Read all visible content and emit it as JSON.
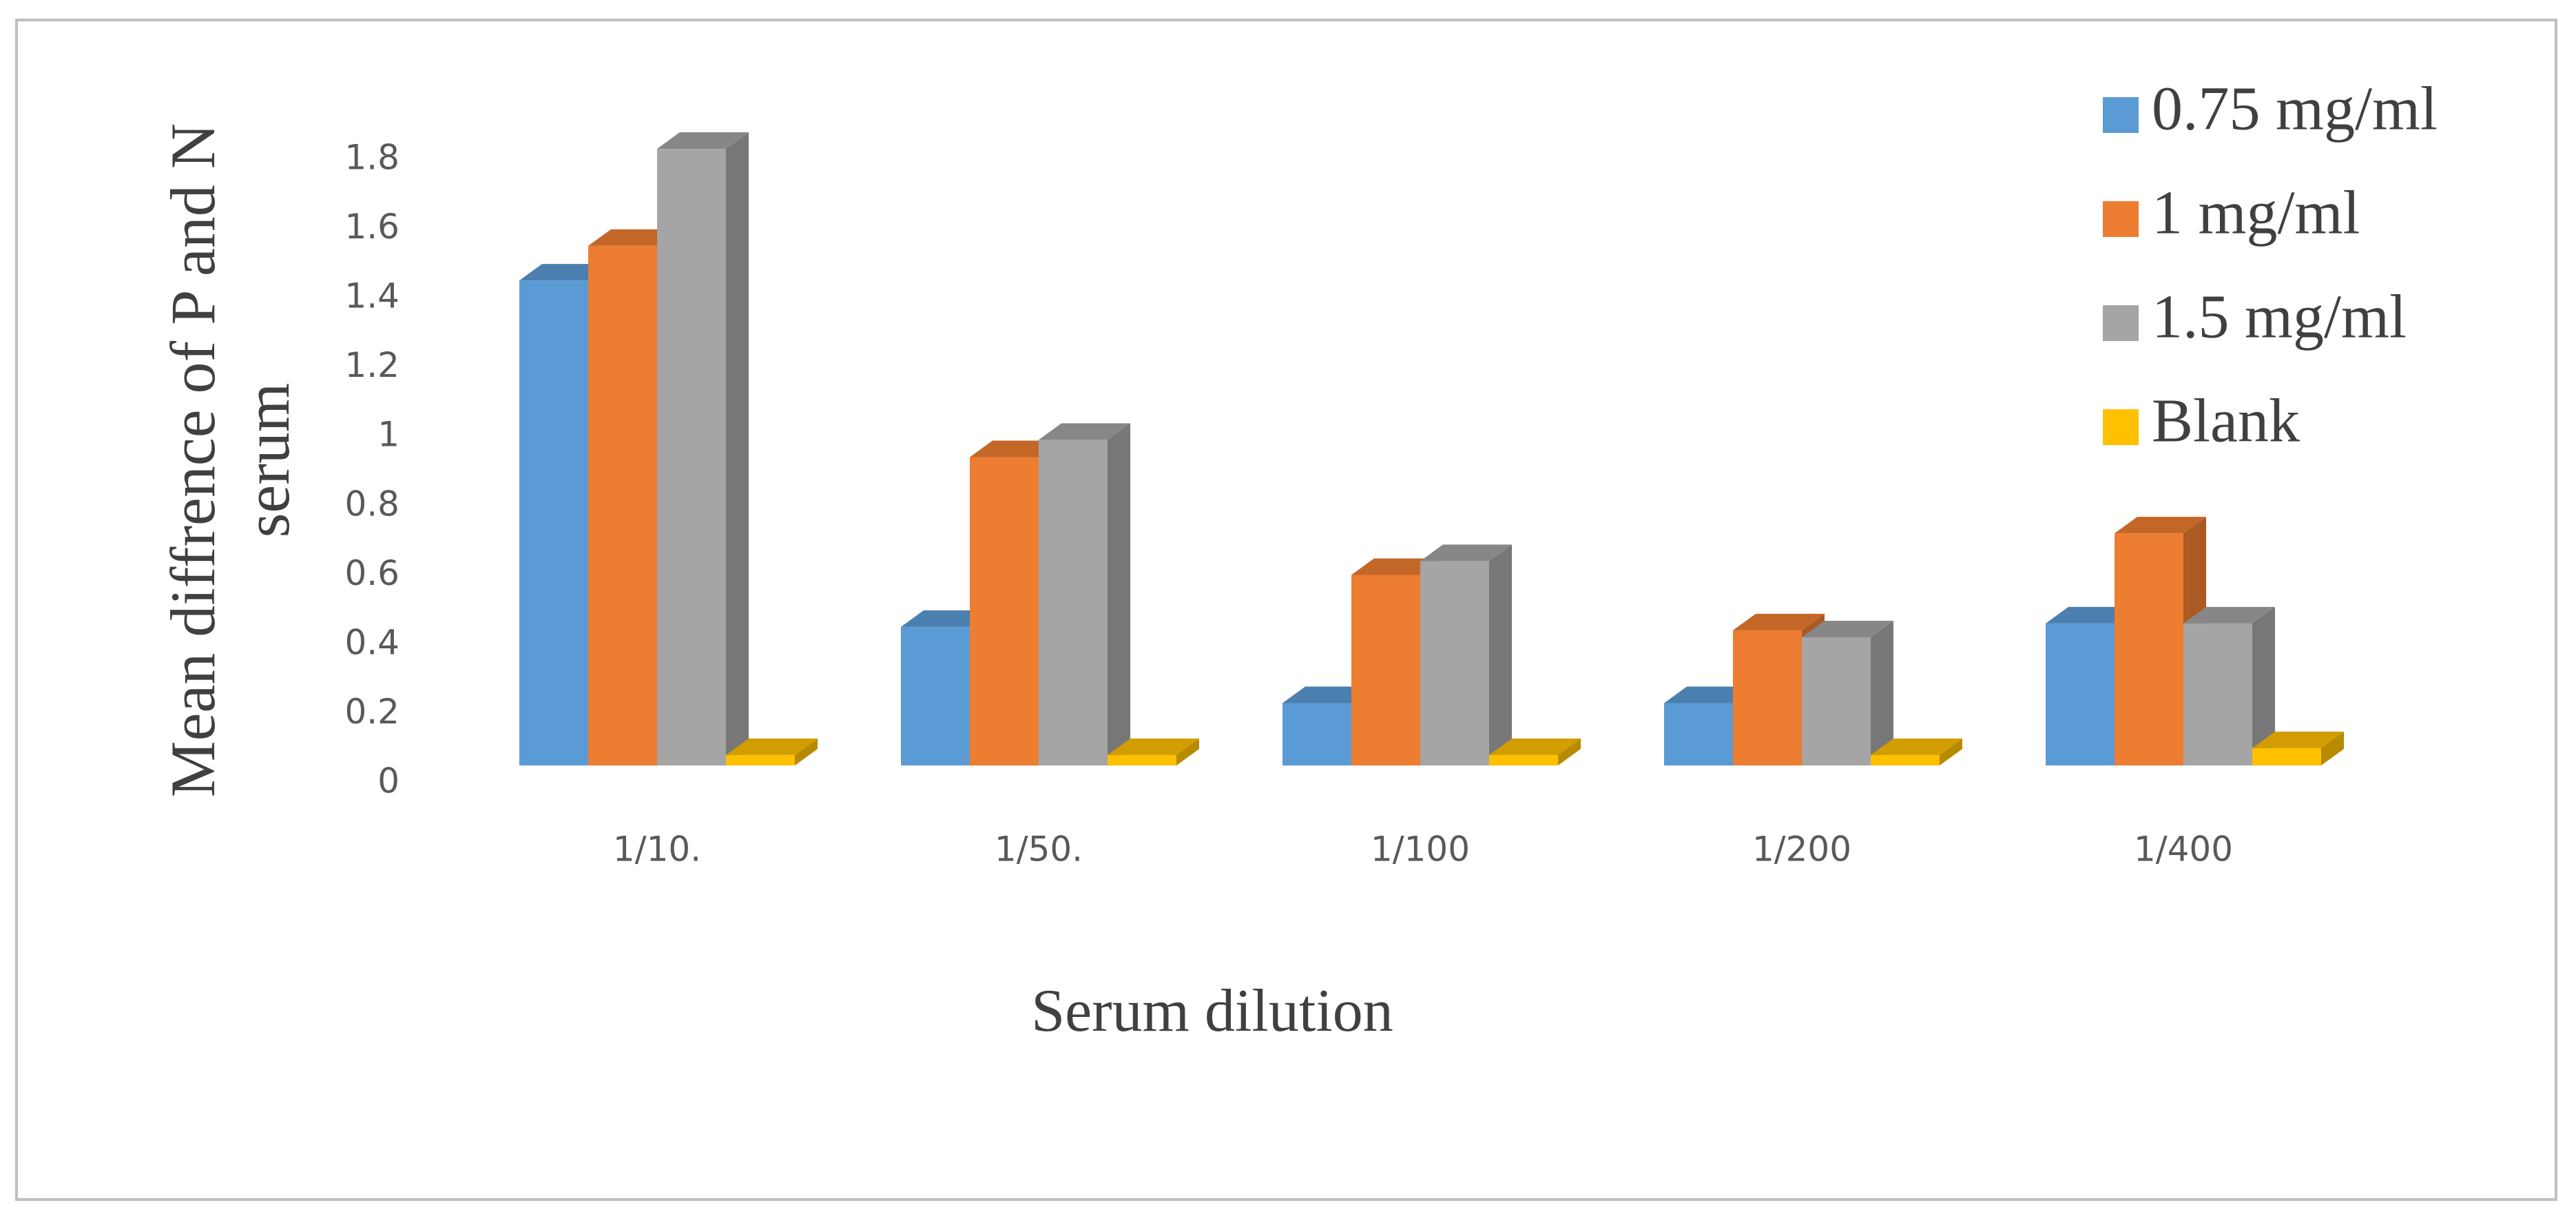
{
  "chart_data": {
    "type": "bar3d",
    "y_label": [
      "Mean diffrence of P and N",
      "serum"
    ],
    "x_label": "Serum dilution",
    "categories": [
      "1/10.",
      "1/50.",
      "1/100",
      "1/200",
      "1/400"
    ],
    "series": [
      {
        "name": "0.75 mg/ml",
        "color": "#5b9bd5",
        "values": [
          1.4,
          0.4,
          0.18,
          0.18,
          0.41
        ]
      },
      {
        "name": "1 mg/ml",
        "color": "#ed7d31",
        "values": [
          1.5,
          0.89,
          0.55,
          0.39,
          0.67
        ]
      },
      {
        "name": "1.5 mg/ml",
        "color": "#a5a5a5",
        "values": [
          1.78,
          0.94,
          0.59,
          0.37,
          0.41
        ]
      },
      {
        "name": "Blank",
        "color": "#ffc000",
        "values": [
          0.03,
          0.03,
          0.03,
          0.03,
          0.05
        ]
      }
    ],
    "ylim": [
      0,
      1.8
    ],
    "yticks": [
      0,
      0.2,
      0.4,
      0.6,
      0.8,
      1,
      1.2,
      1.4,
      1.6,
      1.8
    ],
    "legend": "top-right"
  }
}
